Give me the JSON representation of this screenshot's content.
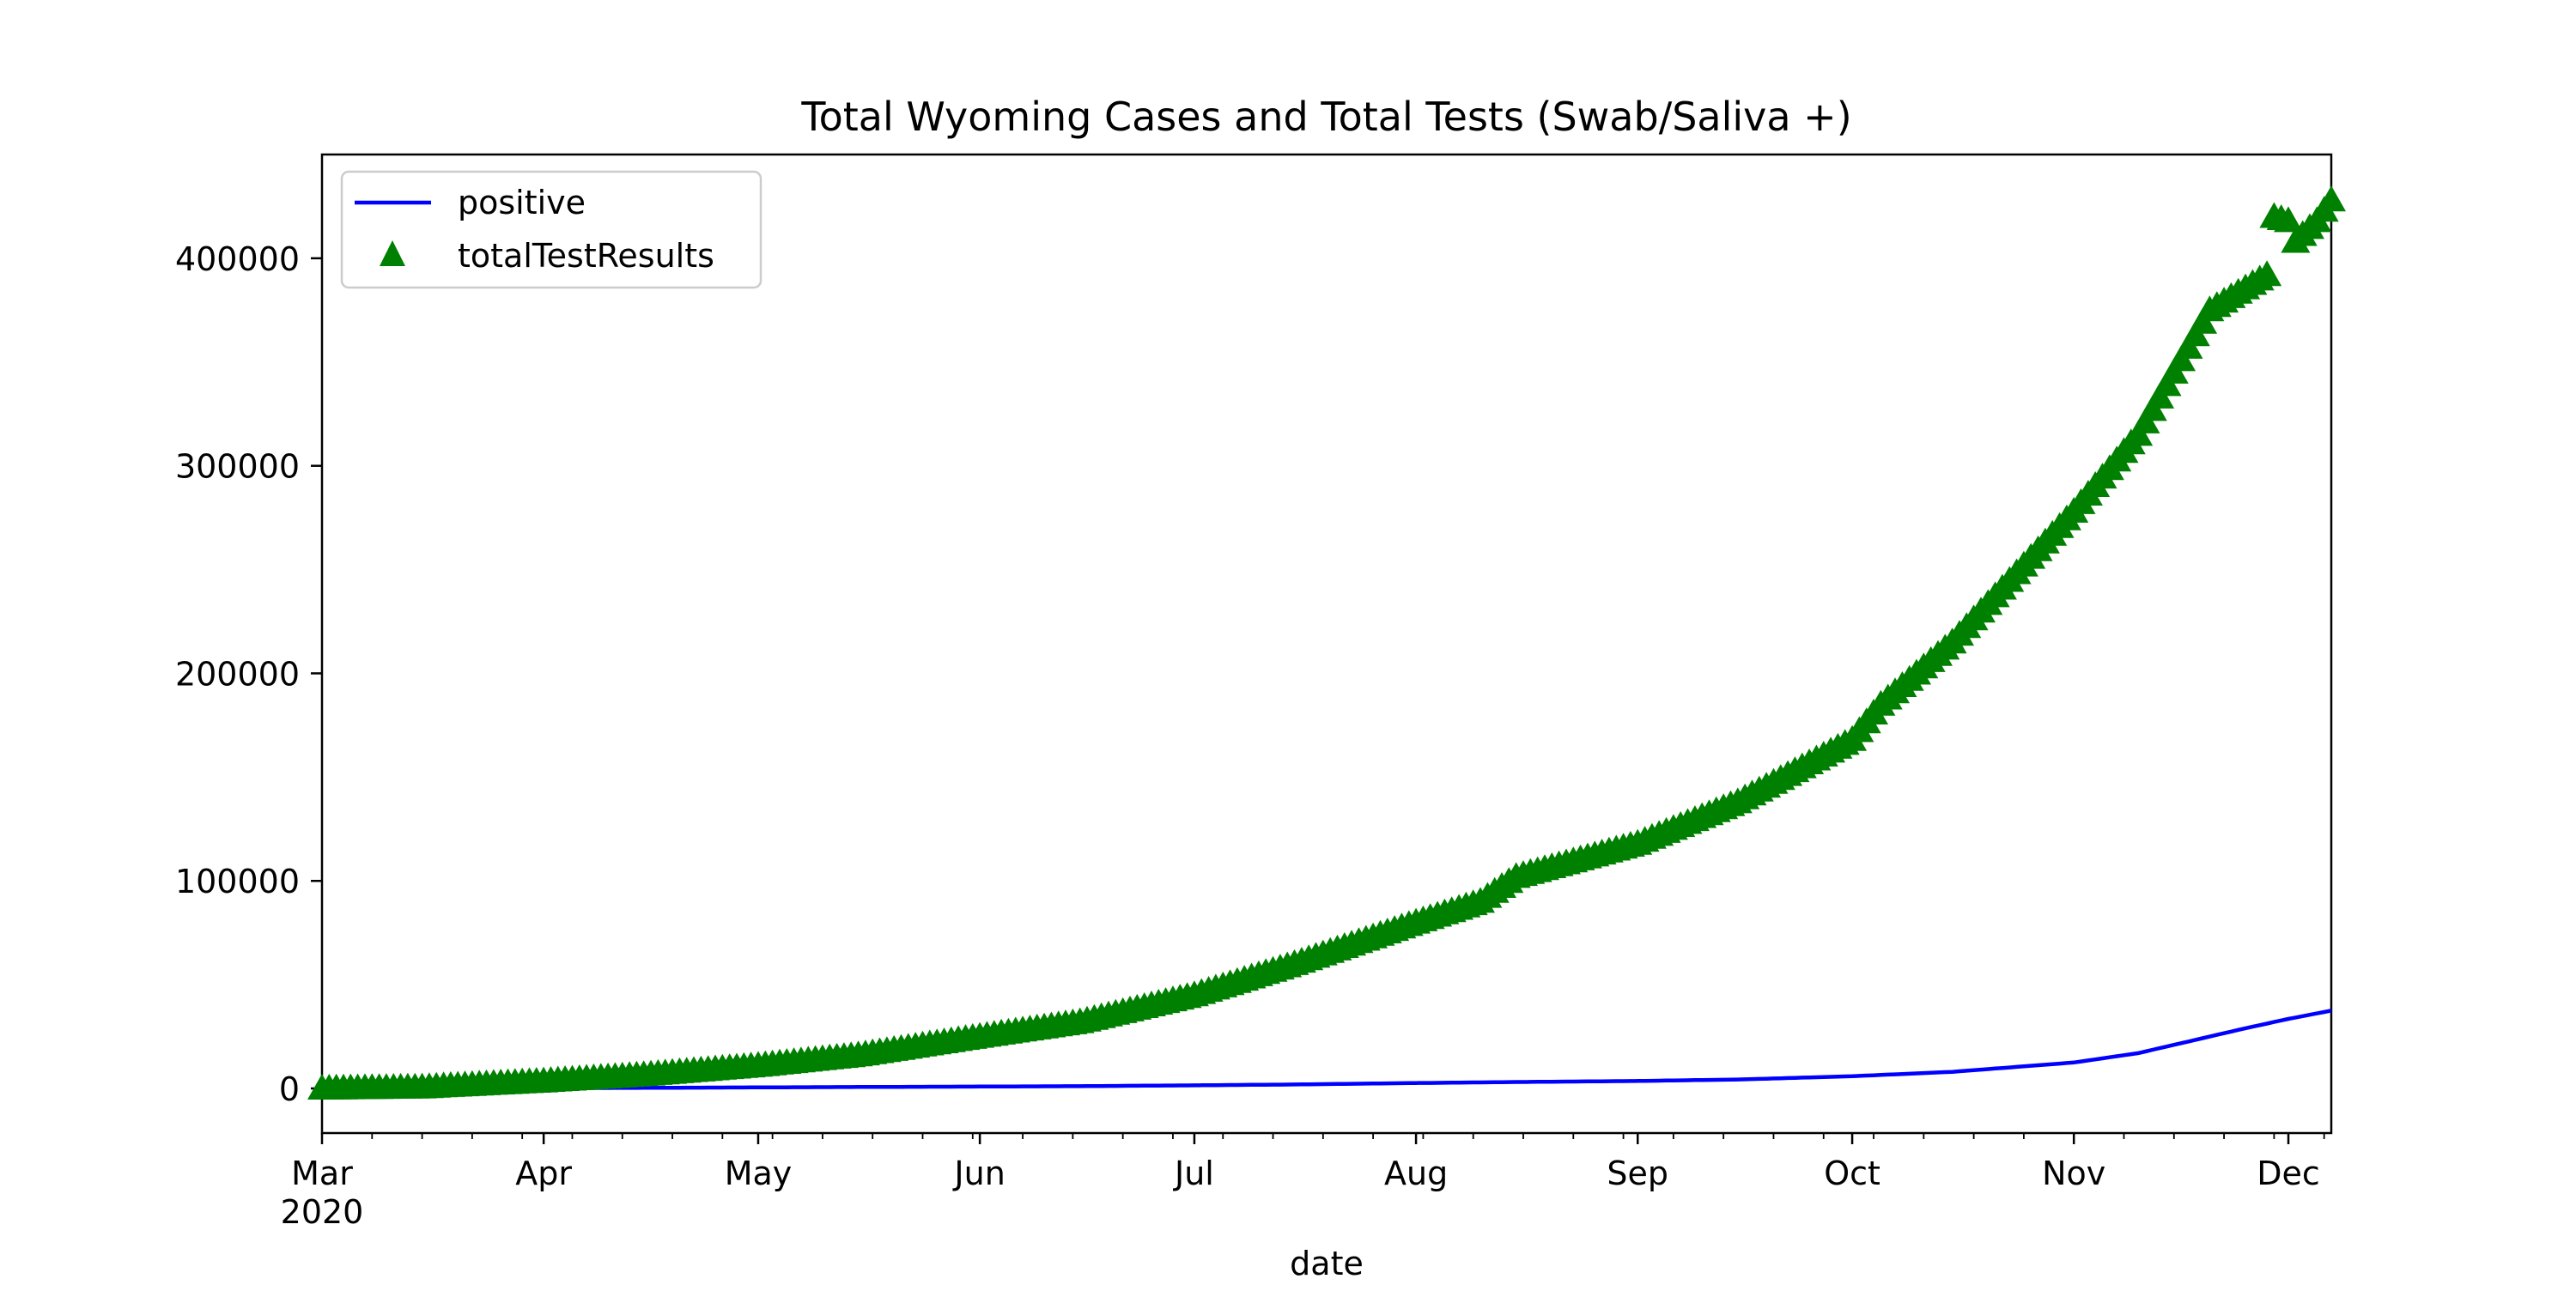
{
  "chart_data": {
    "type": "line",
    "title": "Total Wyoming Cases and Total Tests (Swab/Saliva +)",
    "xlabel": "date",
    "ylabel": "",
    "x_range": [
      "2020-03-01",
      "2020-12-07"
    ],
    "ylim": [
      -21500,
      450000
    ],
    "y_ticks": [
      0,
      100000,
      200000,
      300000,
      400000
    ],
    "y_tick_labels": [
      "0",
      "100000",
      "200000",
      "300000",
      "400000"
    ],
    "x_ticks": [
      {
        "date": "2020-03-01",
        "label": "Mar",
        "sublabel": "2020"
      },
      {
        "date": "2020-04-01",
        "label": "Apr",
        "sublabel": ""
      },
      {
        "date": "2020-05-01",
        "label": "May",
        "sublabel": ""
      },
      {
        "date": "2020-06-01",
        "label": "Jun",
        "sublabel": ""
      },
      {
        "date": "2020-07-01",
        "label": "Jul",
        "sublabel": ""
      },
      {
        "date": "2020-08-01",
        "label": "Aug",
        "sublabel": ""
      },
      {
        "date": "2020-09-01",
        "label": "Sep",
        "sublabel": ""
      },
      {
        "date": "2020-10-01",
        "label": "Oct",
        "sublabel": ""
      },
      {
        "date": "2020-11-01",
        "label": "Nov",
        "sublabel": ""
      },
      {
        "date": "2020-12-01",
        "label": "Dec",
        "sublabel": ""
      }
    ],
    "grid": false,
    "legend_position": "top-left",
    "series": [
      {
        "name": "positive",
        "style": "line",
        "color": "#0000ff",
        "points": [
          [
            "2020-03-01",
            0
          ],
          [
            "2020-03-15",
            10
          ],
          [
            "2020-04-01",
            150
          ],
          [
            "2020-04-15",
            280
          ],
          [
            "2020-05-01",
            500
          ],
          [
            "2020-05-15",
            700
          ],
          [
            "2020-06-01",
            900
          ],
          [
            "2020-06-15",
            1100
          ],
          [
            "2020-07-01",
            1500
          ],
          [
            "2020-07-15",
            1900
          ],
          [
            "2020-08-01",
            2600
          ],
          [
            "2020-08-15",
            3100
          ],
          [
            "2020-09-01",
            3600
          ],
          [
            "2020-09-15",
            4300
          ],
          [
            "2020-10-01",
            5900
          ],
          [
            "2020-10-15",
            8000
          ],
          [
            "2020-11-01",
            12500
          ],
          [
            "2020-11-10",
            17000
          ],
          [
            "2020-11-20",
            25000
          ],
          [
            "2020-11-25",
            29000
          ],
          [
            "2020-12-01",
            33500
          ],
          [
            "2020-12-07",
            37500
          ]
        ]
      },
      {
        "name": "totalTestResults",
        "style": "triangle-markers",
        "color": "#008000",
        "points": [
          [
            "2020-03-01",
            0
          ],
          [
            "2020-03-15",
            600
          ],
          [
            "2020-04-01",
            3500
          ],
          [
            "2020-04-15",
            6500
          ],
          [
            "2020-05-01",
            11000
          ],
          [
            "2020-05-15",
            16000
          ],
          [
            "2020-06-01",
            25000
          ],
          [
            "2020-06-15",
            32000
          ],
          [
            "2020-07-01",
            45000
          ],
          [
            "2020-07-15",
            60000
          ],
          [
            "2020-08-01",
            80000
          ],
          [
            "2020-08-10",
            90000
          ],
          [
            "2020-08-15",
            102000
          ],
          [
            "2020-09-01",
            118000
          ],
          [
            "2020-09-15",
            138000
          ],
          [
            "2020-10-01",
            168000
          ],
          [
            "2020-10-05",
            185000
          ],
          [
            "2020-10-15",
            215000
          ],
          [
            "2020-11-01",
            278000
          ],
          [
            "2020-11-10",
            315000
          ],
          [
            "2020-11-20",
            375000
          ],
          [
            "2020-11-28",
            392000
          ],
          [
            "2020-11-29",
            420000
          ],
          [
            "2020-12-01",
            418000
          ],
          [
            "2020-12-02",
            408000
          ],
          [
            "2020-12-05",
            418000
          ],
          [
            "2020-12-07",
            428000
          ]
        ]
      }
    ]
  }
}
